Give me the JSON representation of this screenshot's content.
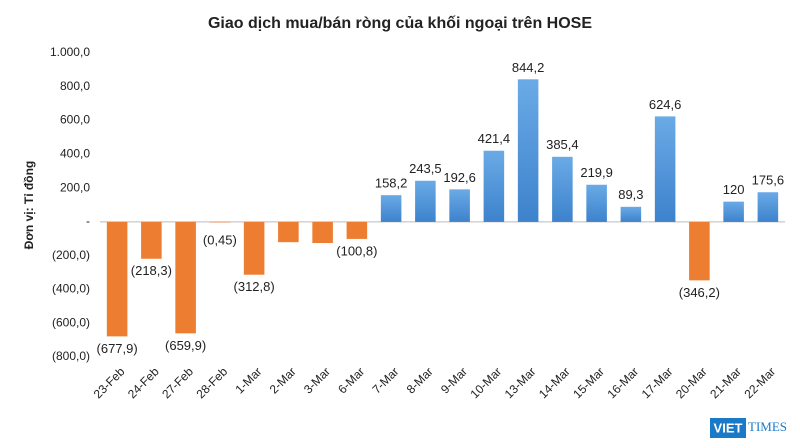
{
  "chart_data": {
    "type": "bar",
    "title": "Giao dịch mua/bán ròng của khối ngoại trên HOSE",
    "y_label": "Đơn vị: Tỉ đồng",
    "categories": [
      "23-Feb",
      "24-Feb",
      "27-Feb",
      "28-Feb",
      "1-Mar",
      "2-Mar",
      "3-Mar",
      "6-Mar",
      "7-Mar",
      "8-Mar",
      "9-Mar",
      "10-Mar",
      "13-Mar",
      "14-Mar",
      "15-Mar",
      "16-Mar",
      "17-Mar",
      "20-Mar",
      "21-Mar",
      "22-Mar"
    ],
    "values": [
      -677.9,
      -218.3,
      -659.9,
      -0.45,
      -312.8,
      -120,
      -125,
      -100.8,
      158.2,
      243.5,
      192.6,
      421.4,
      844.2,
      385.4,
      219.9,
      89.3,
      624.6,
      -346.2,
      120,
      175.6
    ],
    "value_labels": [
      "(677,9)",
      "(218,3)",
      "(659,9)",
      "(0,45)",
      "(312,8)",
      null,
      null,
      "(100,8)",
      "158,2",
      "243,5",
      "192,6",
      "421,4",
      "844,2",
      "385,4",
      "219,9",
      "89,3",
      "624,6",
      "(346,2)",
      "120",
      "175,6"
    ],
    "color_positive": "#4a90d9",
    "color_negative": "#ed7d31",
    "ylim": [
      -800,
      1000
    ],
    "yticks": [
      {
        "value": 1000,
        "label": "1.000,0"
      },
      {
        "value": 800,
        "label": "800,0"
      },
      {
        "value": 600,
        "label": "600,0"
      },
      {
        "value": 400,
        "label": "400,0"
      },
      {
        "value": 200,
        "label": "200,0"
      },
      {
        "value": 0,
        "label": "-"
      },
      {
        "value": -200,
        "label": "(200,0)"
      },
      {
        "value": -400,
        "label": "(400,0)"
      },
      {
        "value": -600,
        "label": "(600,0)"
      },
      {
        "value": -800,
        "label": "(800,0)"
      }
    ],
    "grid": false
  },
  "logo": {
    "left": "VIET",
    "right": "TIMES"
  }
}
